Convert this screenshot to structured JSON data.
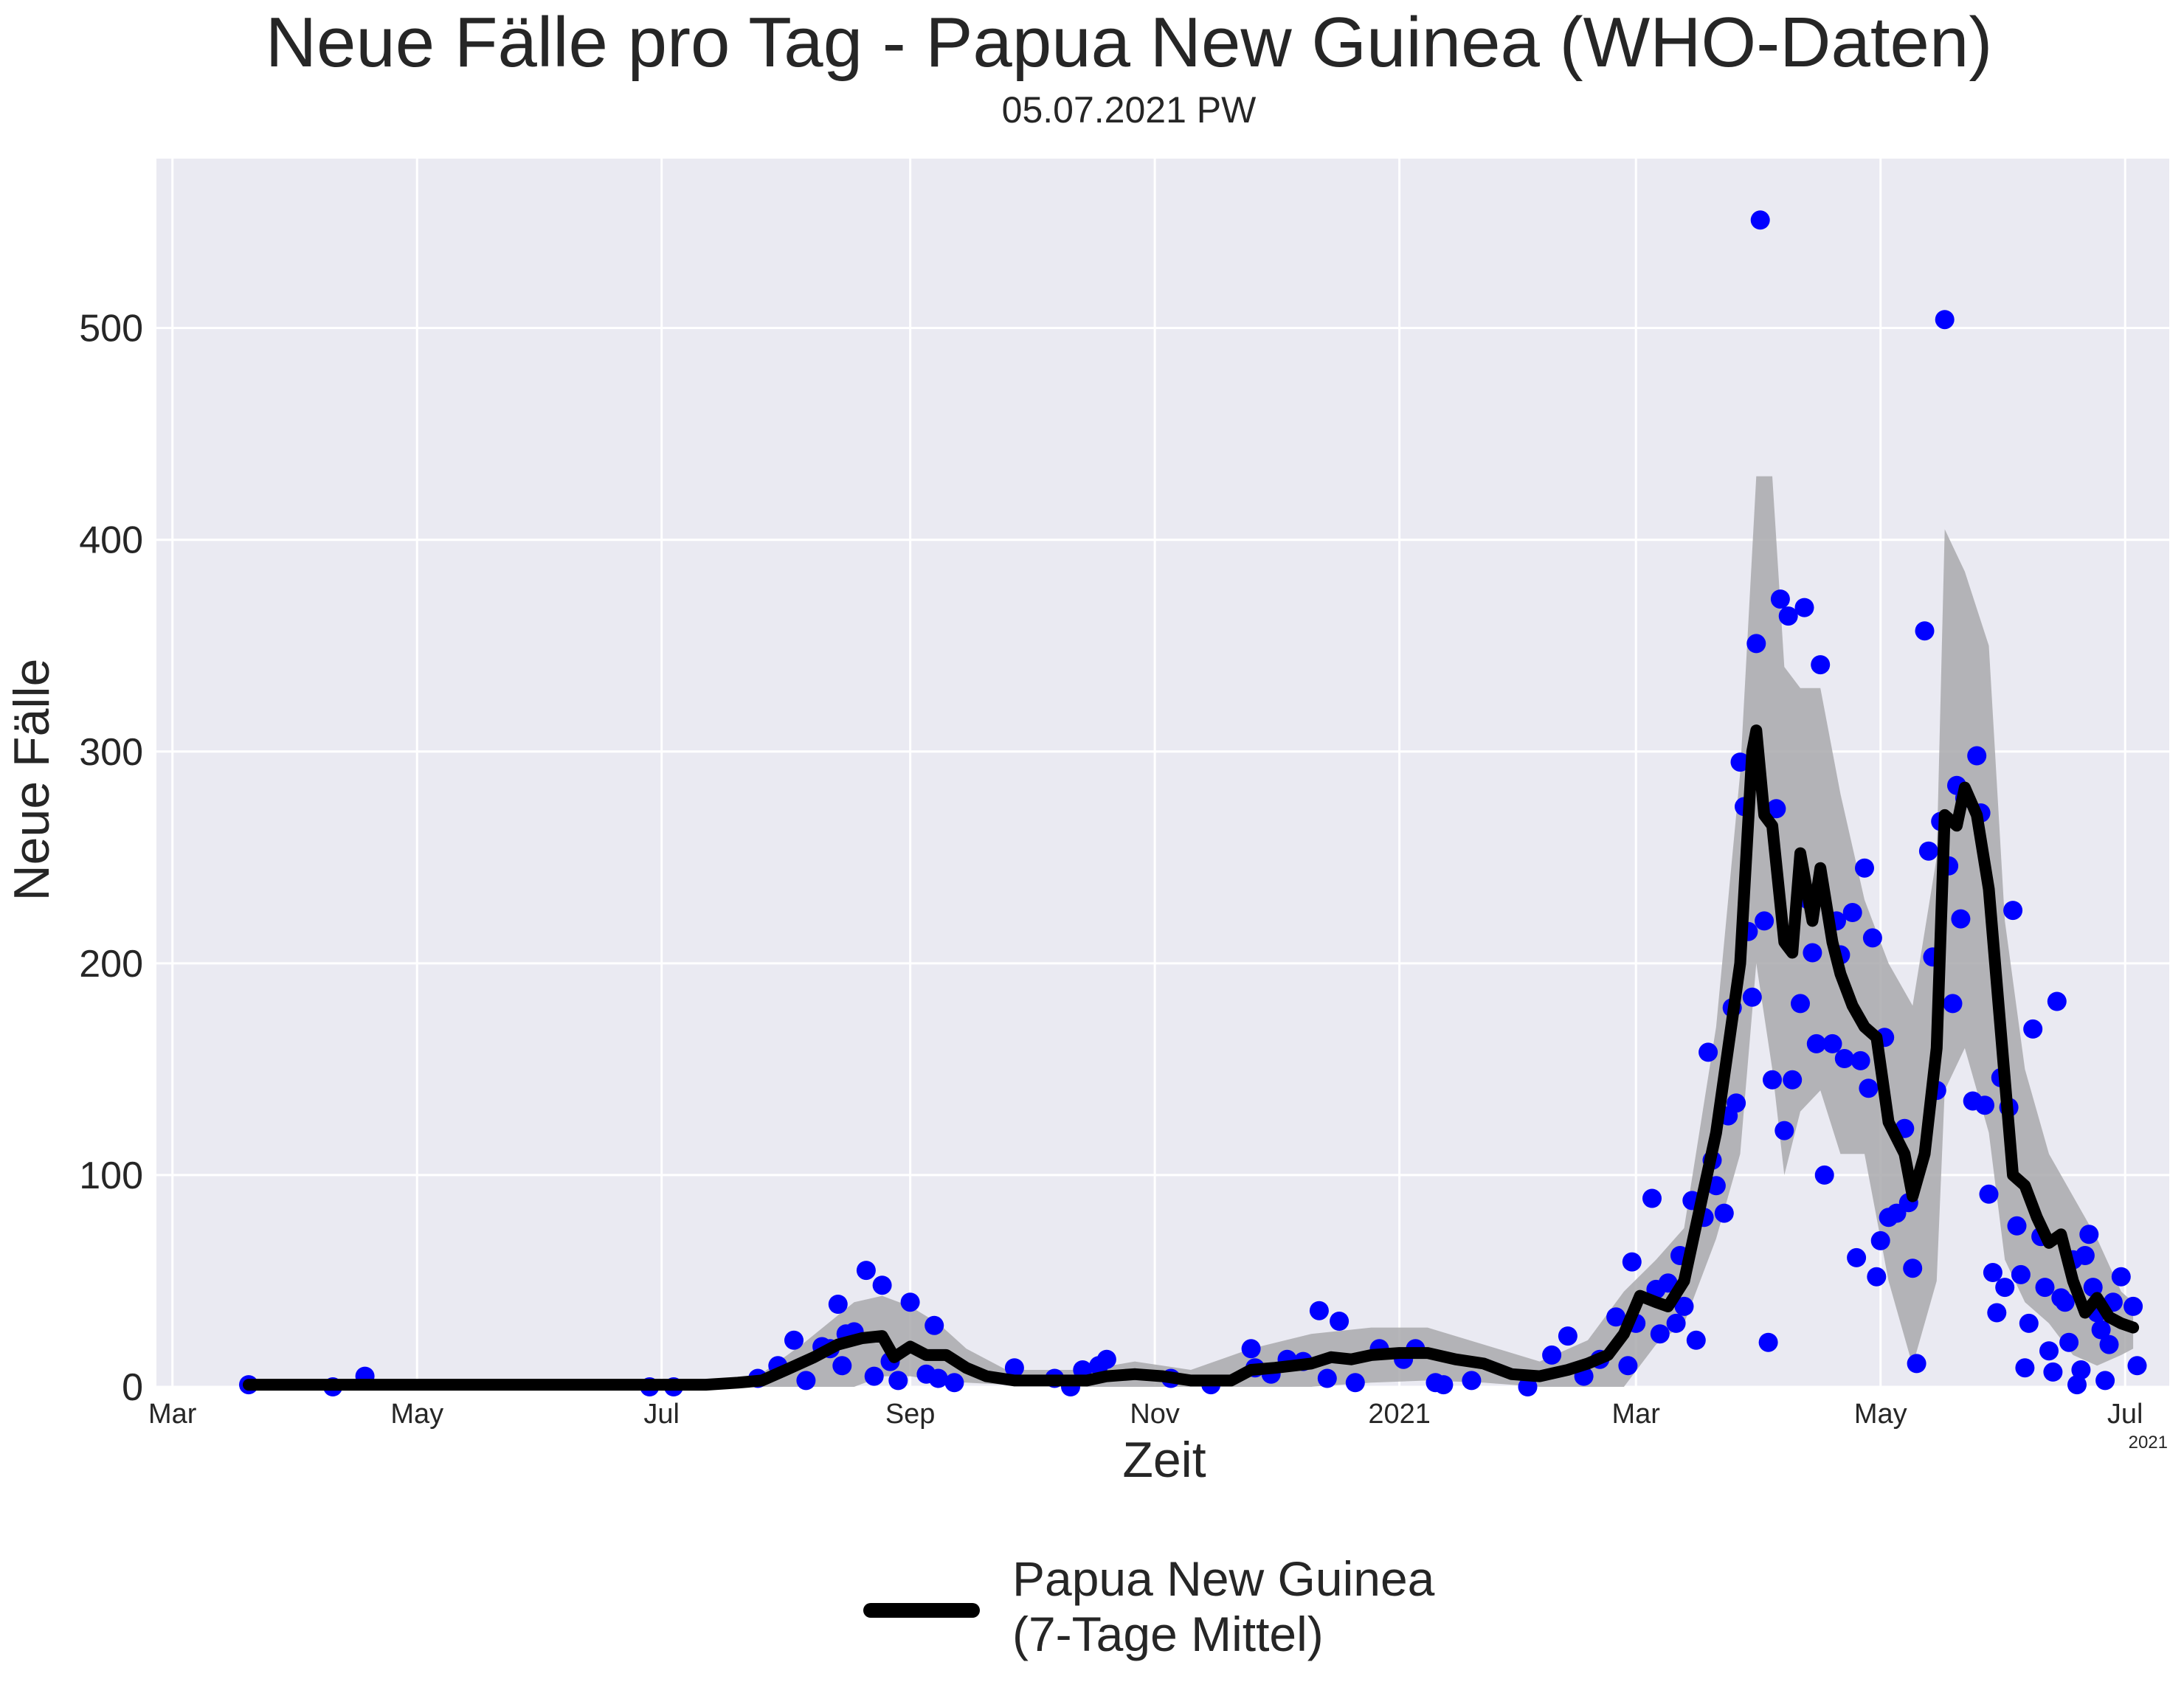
{
  "chart_data": {
    "type": "line",
    "title": "Neue Fälle pro Tag - Papua New Guinea (WHO-Daten)",
    "subtitle": "05.07.2021 PW",
    "xlabel": "Zeit",
    "ylabel": "Neue Fälle",
    "x_ticks": [
      "Mar",
      "May",
      "Jul",
      "Sep",
      "Nov",
      "2021",
      "Mar",
      "May",
      "Jul"
    ],
    "x_tick_values": [
      "2020-03-01",
      "2020-05-01",
      "2020-07-01",
      "2020-09-01",
      "2020-11-01",
      "2021-01-01",
      "2021-03-01",
      "2021-05-01",
      "2021-07-01"
    ],
    "x_offset_label": "2021",
    "xlim": [
      "2020-02-26",
      "2021-07-12"
    ],
    "y_ticks": [
      0,
      100,
      200,
      300,
      400,
      500
    ],
    "ylim": [
      0,
      580
    ],
    "grid": true,
    "legend_position": "bottom-center",
    "colors": {
      "background": "#eaeaf2",
      "grid": "#ffffff",
      "points": "#0000ff",
      "line": "#000000",
      "band": "#a9a9ad"
    },
    "series": [
      {
        "name": "Papua New Guinea\n(7-Tage Mittel)",
        "legend_lines": [
          "Papua New Guinea",
          "(7-Tage Mittel)"
        ],
        "kind": "moving_average",
        "points": [
          [
            "2020-03-20",
            1
          ],
          [
            "2020-04-15",
            1
          ],
          [
            "2020-04-30",
            1
          ],
          [
            "2020-06-15",
            1
          ],
          [
            "2020-07-12",
            1
          ],
          [
            "2020-07-20",
            2
          ],
          [
            "2020-07-26",
            3
          ],
          [
            "2020-08-01",
            8
          ],
          [
            "2020-08-08",
            14
          ],
          [
            "2020-08-14",
            20
          ],
          [
            "2020-08-20",
            23
          ],
          [
            "2020-08-25",
            24
          ],
          [
            "2020-08-28",
            14
          ],
          [
            "2020-09-01",
            19
          ],
          [
            "2020-09-05",
            15
          ],
          [
            "2020-09-10",
            15
          ],
          [
            "2020-09-15",
            9
          ],
          [
            "2020-09-20",
            5
          ],
          [
            "2020-09-27",
            3
          ],
          [
            "2020-10-05",
            3
          ],
          [
            "2020-10-15",
            3
          ],
          [
            "2020-10-20",
            5
          ],
          [
            "2020-10-27",
            6
          ],
          [
            "2020-11-03",
            5
          ],
          [
            "2020-11-10",
            3
          ],
          [
            "2020-11-20",
            3
          ],
          [
            "2020-11-25",
            8
          ],
          [
            "2020-12-01",
            9
          ],
          [
            "2020-12-10",
            11
          ],
          [
            "2020-12-15",
            14
          ],
          [
            "2020-12-20",
            13
          ],
          [
            "2020-12-25",
            15
          ],
          [
            "2021-01-01",
            16
          ],
          [
            "2021-01-08",
            16
          ],
          [
            "2021-01-15",
            13
          ],
          [
            "2021-01-22",
            11
          ],
          [
            "2021-01-29",
            6
          ],
          [
            "2021-02-05",
            5
          ],
          [
            "2021-02-12",
            8
          ],
          [
            "2021-02-17",
            11
          ],
          [
            "2021-02-22",
            15
          ],
          [
            "2021-02-26",
            25
          ],
          [
            "2021-03-02",
            43
          ],
          [
            "2021-03-06",
            40
          ],
          [
            "2021-03-09",
            38
          ],
          [
            "2021-03-13",
            50
          ],
          [
            "2021-03-17",
            85
          ],
          [
            "2021-03-21",
            120
          ],
          [
            "2021-03-24",
            160
          ],
          [
            "2021-03-27",
            200
          ],
          [
            "2021-03-30",
            300
          ],
          [
            "2021-03-31",
            310
          ],
          [
            "2021-04-02",
            270
          ],
          [
            "2021-04-04",
            265
          ],
          [
            "2021-04-07",
            210
          ],
          [
            "2021-04-09",
            205
          ],
          [
            "2021-04-11",
            252
          ],
          [
            "2021-04-14",
            220
          ],
          [
            "2021-04-16",
            245
          ],
          [
            "2021-04-19",
            210
          ],
          [
            "2021-04-21",
            195
          ],
          [
            "2021-04-24",
            180
          ],
          [
            "2021-04-27",
            170
          ],
          [
            "2021-04-30",
            165
          ],
          [
            "2021-05-03",
            125
          ],
          [
            "2021-05-07",
            110
          ],
          [
            "2021-05-09",
            90
          ],
          [
            "2021-05-12",
            110
          ],
          [
            "2021-05-15",
            160
          ],
          [
            "2021-05-17",
            270
          ],
          [
            "2021-05-20",
            265
          ],
          [
            "2021-05-22",
            283
          ],
          [
            "2021-05-25",
            270
          ],
          [
            "2021-05-28",
            235
          ],
          [
            "2021-06-01",
            145
          ],
          [
            "2021-06-03",
            100
          ],
          [
            "2021-06-06",
            95
          ],
          [
            "2021-06-09",
            80
          ],
          [
            "2021-06-12",
            68
          ],
          [
            "2021-06-15",
            72
          ],
          [
            "2021-06-18",
            50
          ],
          [
            "2021-06-21",
            35
          ],
          [
            "2021-06-24",
            42
          ],
          [
            "2021-06-27",
            33
          ],
          [
            "2021-06-30",
            30
          ],
          [
            "2021-07-03",
            28
          ]
        ]
      }
    ],
    "band": [
      [
        "2020-07-25",
        0,
        5
      ],
      [
        "2020-08-05",
        0,
        20
      ],
      [
        "2020-08-18",
        0,
        40
      ],
      [
        "2020-08-25",
        5,
        43
      ],
      [
        "2020-09-01",
        5,
        38
      ],
      [
        "2020-09-08",
        3,
        30
      ],
      [
        "2020-09-15",
        2,
        18
      ],
      [
        "2020-09-25",
        1,
        8
      ],
      [
        "2020-10-15",
        0,
        8
      ],
      [
        "2020-10-27",
        0,
        12
      ],
      [
        "2020-11-10",
        0,
        8
      ],
      [
        "2020-11-25",
        0,
        18
      ],
      [
        "2020-12-10",
        0,
        25
      ],
      [
        "2020-12-25",
        2,
        28
      ],
      [
        "2021-01-08",
        3,
        28
      ],
      [
        "2021-01-22",
        2,
        20
      ],
      [
        "2021-02-05",
        0,
        12
      ],
      [
        "2021-02-17",
        0,
        22
      ],
      [
        "2021-02-26",
        0,
        45
      ],
      [
        "2021-03-06",
        20,
        60
      ],
      [
        "2021-03-13",
        30,
        75
      ],
      [
        "2021-03-21",
        70,
        170
      ],
      [
        "2021-03-27",
        110,
        290
      ],
      [
        "2021-03-31",
        200,
        430
      ],
      [
        "2021-04-04",
        150,
        430
      ],
      [
        "2021-04-07",
        100,
        340
      ],
      [
        "2021-04-11",
        130,
        330
      ],
      [
        "2021-04-16",
        140,
        330
      ],
      [
        "2021-04-21",
        110,
        280
      ],
      [
        "2021-04-27",
        110,
        230
      ],
      [
        "2021-05-03",
        50,
        200
      ],
      [
        "2021-05-09",
        10,
        180
      ],
      [
        "2021-05-15",
        50,
        250
      ],
      [
        "2021-05-17",
        140,
        405
      ],
      [
        "2021-05-22",
        160,
        385
      ],
      [
        "2021-05-28",
        120,
        350
      ],
      [
        "2021-06-01",
        60,
        220
      ],
      [
        "2021-06-06",
        40,
        150
      ],
      [
        "2021-06-12",
        30,
        110
      ],
      [
        "2021-06-18",
        15,
        90
      ],
      [
        "2021-06-24",
        10,
        70
      ],
      [
        "2021-06-30",
        15,
        45
      ],
      [
        "2021-07-03",
        18,
        40
      ]
    ],
    "daily_cases": [
      [
        "2020-03-20",
        1
      ],
      [
        "2020-04-10",
        0
      ],
      [
        "2020-04-18",
        5
      ],
      [
        "2020-06-28",
        0
      ],
      [
        "2020-07-04",
        0
      ],
      [
        "2020-07-25",
        4
      ],
      [
        "2020-07-30",
        10
      ],
      [
        "2020-08-03",
        22
      ],
      [
        "2020-08-06",
        3
      ],
      [
        "2020-08-10",
        19
      ],
      [
        "2020-08-12",
        18
      ],
      [
        "2020-08-14",
        39
      ],
      [
        "2020-08-15",
        10
      ],
      [
        "2020-08-16",
        25
      ],
      [
        "2020-08-18",
        26
      ],
      [
        "2020-08-21",
        55
      ],
      [
        "2020-08-23",
        5
      ],
      [
        "2020-08-25",
        48
      ],
      [
        "2020-08-27",
        12
      ],
      [
        "2020-08-29",
        3
      ],
      [
        "2020-09-01",
        40
      ],
      [
        "2020-09-05",
        6
      ],
      [
        "2020-09-07",
        29
      ],
      [
        "2020-09-08",
        4
      ],
      [
        "2020-09-12",
        2
      ],
      [
        "2020-09-27",
        9
      ],
      [
        "2020-10-07",
        4
      ],
      [
        "2020-10-11",
        0
      ],
      [
        "2020-10-14",
        8
      ],
      [
        "2020-10-18",
        10
      ],
      [
        "2020-10-20",
        13
      ],
      [
        "2020-11-05",
        4
      ],
      [
        "2020-11-15",
        1
      ],
      [
        "2020-11-25",
        18
      ],
      [
        "2020-11-26",
        9
      ],
      [
        "2020-11-30",
        6
      ],
      [
        "2020-12-04",
        13
      ],
      [
        "2020-12-08",
        12
      ],
      [
        "2020-12-12",
        36
      ],
      [
        "2020-12-14",
        4
      ],
      [
        "2020-12-17",
        31
      ],
      [
        "2020-12-21",
        2
      ],
      [
        "2020-12-27",
        18
      ],
      [
        "2021-01-02",
        13
      ],
      [
        "2021-01-05",
        18
      ],
      [
        "2021-01-10",
        2
      ],
      [
        "2021-01-12",
        1
      ],
      [
        "2021-01-19",
        3
      ],
      [
        "2021-02-02",
        0
      ],
      [
        "2021-02-08",
        15
      ],
      [
        "2021-02-12",
        24
      ],
      [
        "2021-02-16",
        5
      ],
      [
        "2021-02-20",
        13
      ],
      [
        "2021-02-24",
        33
      ],
      [
        "2021-02-27",
        10
      ],
      [
        "2021-02-28",
        59
      ],
      [
        "2021-03-01",
        30
      ],
      [
        "2021-03-05",
        89
      ],
      [
        "2021-03-06",
        46
      ],
      [
        "2021-03-07",
        25
      ],
      [
        "2021-03-09",
        49
      ],
      [
        "2021-03-11",
        30
      ],
      [
        "2021-03-12",
        62
      ],
      [
        "2021-03-13",
        38
      ],
      [
        "2021-03-15",
        88
      ],
      [
        "2021-03-16",
        22
      ],
      [
        "2021-03-18",
        80
      ],
      [
        "2021-03-19",
        158
      ],
      [
        "2021-03-20",
        107
      ],
      [
        "2021-03-21",
        95
      ],
      [
        "2021-03-23",
        82
      ],
      [
        "2021-03-24",
        128
      ],
      [
        "2021-03-25",
        179
      ],
      [
        "2021-03-26",
        134
      ],
      [
        "2021-03-27",
        295
      ],
      [
        "2021-03-28",
        274
      ],
      [
        "2021-03-29",
        215
      ],
      [
        "2021-03-30",
        184
      ],
      [
        "2021-03-31",
        351
      ],
      [
        "2021-04-01",
        551
      ],
      [
        "2021-04-02",
        220
      ],
      [
        "2021-04-03",
        21
      ],
      [
        "2021-04-04",
        145
      ],
      [
        "2021-04-05",
        273
      ],
      [
        "2021-04-06",
        372
      ],
      [
        "2021-04-07",
        121
      ],
      [
        "2021-04-08",
        364
      ],
      [
        "2021-04-09",
        145
      ],
      [
        "2021-04-11",
        181
      ],
      [
        "2021-04-12",
        368
      ],
      [
        "2021-04-13",
        230
      ],
      [
        "2021-04-14",
        205
      ],
      [
        "2021-04-15",
        162
      ],
      [
        "2021-04-16",
        341
      ],
      [
        "2021-04-17",
        100
      ],
      [
        "2021-04-19",
        162
      ],
      [
        "2021-04-20",
        220
      ],
      [
        "2021-04-21",
        204
      ],
      [
        "2021-04-22",
        155
      ],
      [
        "2021-04-24",
        224
      ],
      [
        "2021-04-25",
        61
      ],
      [
        "2021-04-26",
        154
      ],
      [
        "2021-04-27",
        245
      ],
      [
        "2021-04-28",
        141
      ],
      [
        "2021-04-29",
        212
      ],
      [
        "2021-04-30",
        52
      ],
      [
        "2021-05-01",
        69
      ],
      [
        "2021-05-02",
        165
      ],
      [
        "2021-05-03",
        80
      ],
      [
        "2021-05-05",
        82
      ],
      [
        "2021-05-07",
        122
      ],
      [
        "2021-05-08",
        87
      ],
      [
        "2021-05-09",
        56
      ],
      [
        "2021-05-10",
        11
      ],
      [
        "2021-05-12",
        357
      ],
      [
        "2021-05-13",
        253
      ],
      [
        "2021-05-14",
        203
      ],
      [
        "2021-05-15",
        140
      ],
      [
        "2021-05-16",
        267
      ],
      [
        "2021-05-17",
        504
      ],
      [
        "2021-05-18",
        246
      ],
      [
        "2021-05-19",
        181
      ],
      [
        "2021-05-20",
        284
      ],
      [
        "2021-05-21",
        221
      ],
      [
        "2021-05-22",
        278
      ],
      [
        "2021-05-24",
        135
      ],
      [
        "2021-05-25",
        298
      ],
      [
        "2021-05-26",
        271
      ],
      [
        "2021-05-27",
        133
      ],
      [
        "2021-05-28",
        91
      ],
      [
        "2021-05-29",
        54
      ],
      [
        "2021-05-30",
        35
      ],
      [
        "2021-05-31",
        146
      ],
      [
        "2021-06-01",
        47
      ],
      [
        "2021-06-02",
        132
      ],
      [
        "2021-06-03",
        225
      ],
      [
        "2021-06-04",
        76
      ],
      [
        "2021-06-05",
        53
      ],
      [
        "2021-06-06",
        9
      ],
      [
        "2021-06-07",
        30
      ],
      [
        "2021-06-08",
        169
      ],
      [
        "2021-06-10",
        71
      ],
      [
        "2021-06-11",
        47
      ],
      [
        "2021-06-12",
        17
      ],
      [
        "2021-06-13",
        7
      ],
      [
        "2021-06-14",
        182
      ],
      [
        "2021-06-15",
        42
      ],
      [
        "2021-06-16",
        40
      ],
      [
        "2021-06-17",
        21
      ],
      [
        "2021-06-18",
        60
      ],
      [
        "2021-06-19",
        1
      ],
      [
        "2021-06-20",
        8
      ],
      [
        "2021-06-21",
        62
      ],
      [
        "2021-06-22",
        72
      ],
      [
        "2021-06-23",
        47
      ],
      [
        "2021-06-24",
        35
      ],
      [
        "2021-06-25",
        27
      ],
      [
        "2021-06-26",
        3
      ],
      [
        "2021-06-27",
        20
      ],
      [
        "2021-06-28",
        40
      ],
      [
        "2021-06-30",
        52
      ],
      [
        "2021-07-03",
        38
      ],
      [
        "2021-07-04",
        10
      ]
    ]
  }
}
